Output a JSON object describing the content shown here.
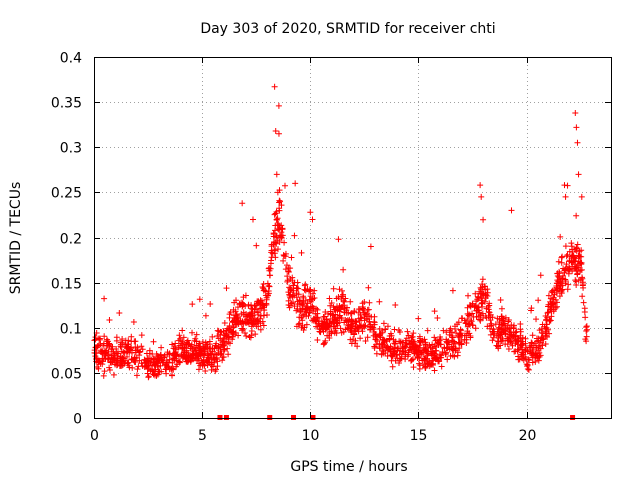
{
  "chart_data": {
    "type": "scatter",
    "title": "Day 303 of 2020, SRMTID for receiver chti",
    "xlabel": "GPS time / hours",
    "ylabel": "SRMTID / TECUs",
    "xlim": [
      0,
      23.9
    ],
    "ylim": [
      0,
      0.4
    ],
    "x_ticks": [
      0,
      5,
      10,
      15,
      20
    ],
    "y_ticks": [
      0,
      0.05,
      0.1,
      0.15,
      0.2,
      0.25,
      0.3,
      0.35,
      0.4
    ],
    "x_tick_labels": [
      "0",
      "5",
      "10",
      "15",
      "20"
    ],
    "y_tick_labels": [
      "0",
      "0.05",
      "0.1",
      "0.15",
      "0.2",
      "0.25",
      "0.3",
      "0.35",
      "0.4"
    ],
    "grid": true,
    "marker": "+",
    "color": "#ff0000",
    "series": [
      {
        "name": "SRMTID",
        "envelope": [
          {
            "x": 0.0,
            "y": 0.075
          },
          {
            "x": 0.5,
            "y": 0.07
          },
          {
            "x": 1.0,
            "y": 0.065
          },
          {
            "x": 1.5,
            "y": 0.075
          },
          {
            "x": 2.0,
            "y": 0.07
          },
          {
            "x": 2.5,
            "y": 0.06
          },
          {
            "x": 3.0,
            "y": 0.06
          },
          {
            "x": 3.5,
            "y": 0.065
          },
          {
            "x": 4.0,
            "y": 0.075
          },
          {
            "x": 4.5,
            "y": 0.075
          },
          {
            "x": 5.0,
            "y": 0.07
          },
          {
            "x": 5.5,
            "y": 0.07
          },
          {
            "x": 6.0,
            "y": 0.08
          },
          {
            "x": 6.5,
            "y": 0.11
          },
          {
            "x": 7.0,
            "y": 0.11
          },
          {
            "x": 7.5,
            "y": 0.11
          },
          {
            "x": 8.0,
            "y": 0.13
          },
          {
            "x": 8.3,
            "y": 0.2
          },
          {
            "x": 8.6,
            "y": 0.22
          },
          {
            "x": 9.0,
            "y": 0.15
          },
          {
            "x": 9.5,
            "y": 0.12
          },
          {
            "x": 10.0,
            "y": 0.13
          },
          {
            "x": 10.5,
            "y": 0.1
          },
          {
            "x": 11.0,
            "y": 0.11
          },
          {
            "x": 11.5,
            "y": 0.12
          },
          {
            "x": 12.0,
            "y": 0.1
          },
          {
            "x": 12.5,
            "y": 0.11
          },
          {
            "x": 13.0,
            "y": 0.09
          },
          {
            "x": 13.5,
            "y": 0.08
          },
          {
            "x": 14.0,
            "y": 0.075
          },
          {
            "x": 14.5,
            "y": 0.08
          },
          {
            "x": 15.0,
            "y": 0.07
          },
          {
            "x": 15.5,
            "y": 0.07
          },
          {
            "x": 16.0,
            "y": 0.075
          },
          {
            "x": 16.5,
            "y": 0.08
          },
          {
            "x": 17.0,
            "y": 0.09
          },
          {
            "x": 17.5,
            "y": 0.11
          },
          {
            "x": 18.0,
            "y": 0.14
          },
          {
            "x": 18.5,
            "y": 0.09
          },
          {
            "x": 19.0,
            "y": 0.1
          },
          {
            "x": 19.5,
            "y": 0.09
          },
          {
            "x": 20.0,
            "y": 0.07
          },
          {
            "x": 20.5,
            "y": 0.08
          },
          {
            "x": 21.0,
            "y": 0.11
          },
          {
            "x": 21.5,
            "y": 0.15
          },
          {
            "x": 22.0,
            "y": 0.17
          },
          {
            "x": 22.5,
            "y": 0.17
          },
          {
            "x": 22.8,
            "y": 0.09
          }
        ],
        "spread": 0.03,
        "count": 2000,
        "peaks": [
          {
            "x": 8.35,
            "y": 0.367
          },
          {
            "x": 8.4,
            "y": 0.318
          },
          {
            "x": 8.55,
            "y": 0.315
          },
          {
            "x": 8.45,
            "y": 0.27
          },
          {
            "x": 8.5,
            "y": 0.25
          },
          {
            "x": 8.6,
            "y": 0.24
          },
          {
            "x": 22.25,
            "y": 0.338
          },
          {
            "x": 22.3,
            "y": 0.322
          },
          {
            "x": 22.35,
            "y": 0.305
          },
          {
            "x": 22.4,
            "y": 0.27
          },
          {
            "x": 21.75,
            "y": 0.258
          },
          {
            "x": 21.8,
            "y": 0.245
          },
          {
            "x": 17.85,
            "y": 0.258
          },
          {
            "x": 17.9,
            "y": 0.245
          },
          {
            "x": 9.3,
            "y": 0.26
          },
          {
            "x": 10.0,
            "y": 0.228
          },
          {
            "x": 10.1,
            "y": 0.22
          },
          {
            "x": 11.3,
            "y": 0.198
          },
          {
            "x": 6.85,
            "y": 0.238
          },
          {
            "x": 7.35,
            "y": 0.22
          },
          {
            "x": 12.8,
            "y": 0.19
          },
          {
            "x": 19.3,
            "y": 0.23
          },
          {
            "x": 22.55,
            "y": 0.245
          }
        ]
      }
    ],
    "gap_markers": [
      5.8,
      6.1,
      8.1,
      9.2,
      10.1,
      22.1
    ]
  }
}
